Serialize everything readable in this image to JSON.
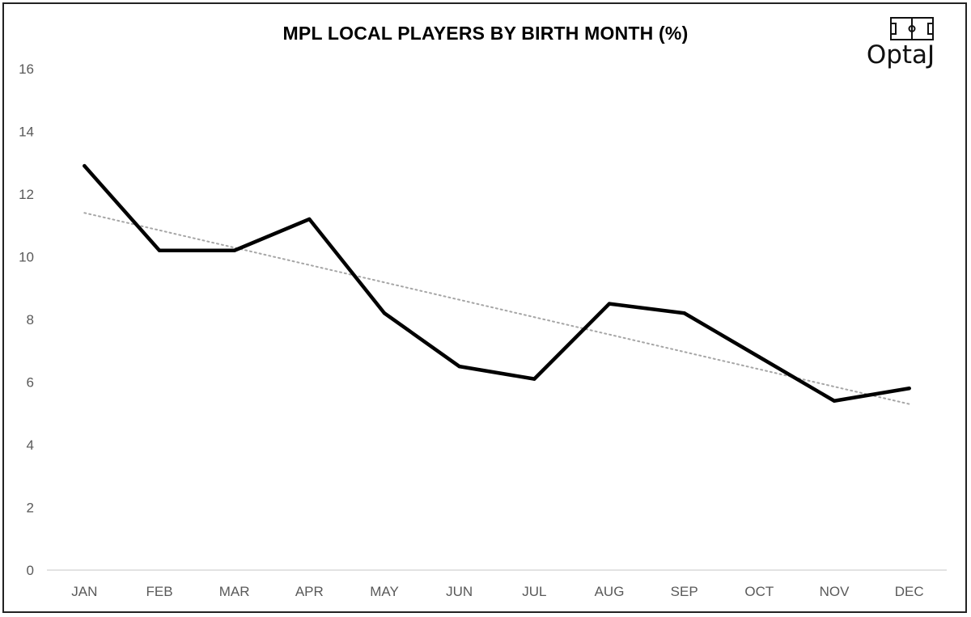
{
  "chart_data": {
    "type": "line",
    "title": "MPL LOCAL PLAYERS BY BIRTH MONTH (%)",
    "xlabel": "",
    "ylabel": "",
    "categories": [
      "JAN",
      "FEB",
      "MAR",
      "APR",
      "MAY",
      "JUN",
      "JUL",
      "AUG",
      "SEP",
      "OCT",
      "NOV",
      "DEC"
    ],
    "series": [
      {
        "values": [
          12.9,
          10.2,
          10.2,
          11.2,
          8.2,
          6.5,
          6.1,
          8.5,
          8.2,
          6.8,
          5.4,
          5.8
        ],
        "color": "#000000"
      }
    ],
    "trendline": {
      "style": "dotted linear",
      "color": "#a6a6a6",
      "start": 11.4,
      "end": 5.3
    },
    "ylim": [
      0,
      16
    ],
    "yticks": [
      0,
      2,
      4,
      6,
      8,
      10,
      12,
      14,
      16
    ],
    "grid": false,
    "legend": "none"
  },
  "logo": {
    "text": "OptaJ",
    "icon": "football-pitch-icon"
  },
  "colors": {
    "line": "#000000",
    "trend": "#a6a6a6",
    "axis": "#d9d9d9",
    "tick_text": "#595959",
    "frame": "#222222"
  }
}
